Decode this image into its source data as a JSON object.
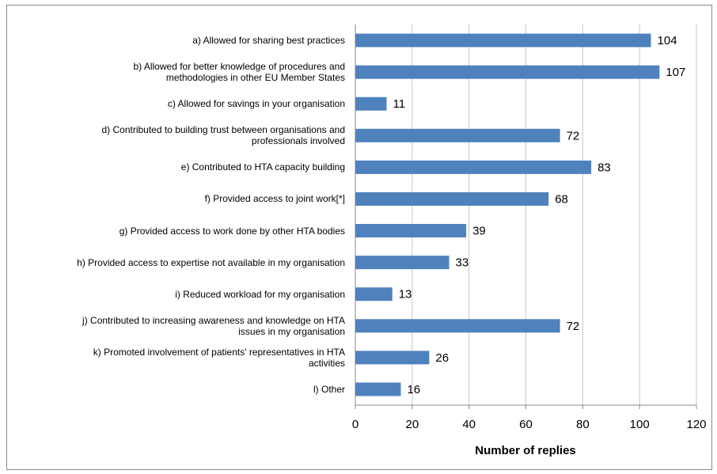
{
  "chart_data": {
    "type": "bar",
    "orientation": "horizontal",
    "x_label": "Number of replies",
    "categories": [
      "a) Allowed for sharing best practices",
      "b) Allowed for better knowledge of procedures and\nmethodologies in other EU Member States",
      "c) Allowed for savings in your organisation",
      "d) Contributed to building trust between organisations and\nprofessionals involved",
      "e) Contributed to HTA capacity building",
      "f) Provided access to joint work[*]",
      "g) Provided access to work done by other HTA bodies",
      "h) Provided access to expertise not available in my organisation",
      "i) Reduced workload for my organisation",
      "j) Contributed to increasing awareness and knowledge on HTA\nissues in my organisation",
      "k) Promoted involvement of patients' representatives in HTA\nactivities",
      "l) Other"
    ],
    "values": [
      104,
      107,
      11,
      72,
      83,
      68,
      39,
      33,
      13,
      72,
      26,
      16
    ],
    "color": "#4f81bd",
    "xlim": [
      0,
      120
    ],
    "xticks": [
      0,
      20,
      40,
      60,
      80,
      100,
      120
    ],
    "grid": true
  }
}
